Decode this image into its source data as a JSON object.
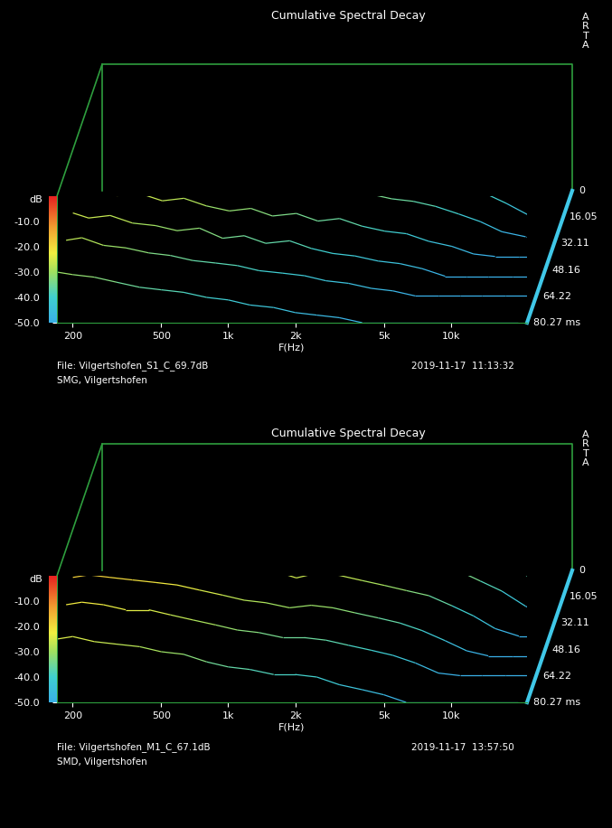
{
  "chart_data": [
    {
      "type": "waterfall",
      "title": "Cumulative Spectral Decay",
      "xlabel": "F(Hz)",
      "ylabel": "dB",
      "log": "x",
      "x": [
        170,
        200,
        250,
        315,
        400,
        500,
        630,
        800,
        1000,
        1250,
        1600,
        2000,
        2500,
        3150,
        4000,
        5000,
        6300,
        8000,
        10000,
        12500,
        16000,
        20000
      ],
      "xlim": [
        170,
        22000
      ],
      "xticks": [
        200,
        500,
        {
          "value": 1000,
          "label": "1k"
        },
        {
          "value": 2000,
          "label": "2k"
        },
        {
          "value": 5000,
          "label": "5k"
        },
        {
          "value": 10000,
          "label": "10k"
        }
      ],
      "ylim": [
        -50,
        0
      ],
      "yticks": [
        {
          "value": -10,
          "label": "-10.0"
        },
        {
          "value": -20,
          "label": "-20.0"
        },
        {
          "value": -30,
          "label": "-30.0"
        },
        {
          "value": -40,
          "label": "-40.0"
        },
        {
          "value": -50,
          "label": "-50.0"
        }
      ],
      "zlim": [
        0,
        80.27
      ],
      "zticks": [
        0,
        16.05,
        32.11,
        48.16,
        64.22,
        {
          "value": 80.27,
          "label": "80.27 ms"
        }
      ],
      "series": [
        {
          "time": 0,
          "values": [
            -3,
            -2,
            -1,
            -1,
            -2,
            -2,
            -3,
            -3,
            -3,
            -3,
            -2,
            -1,
            0,
            -1,
            -2,
            -2,
            -3,
            -3,
            -4,
            -5,
            -7,
            -10
          ]
        },
        {
          "time": 4,
          "values": [
            -8,
            -9,
            -7,
            -9,
            -8,
            -10,
            -9,
            -11,
            -10,
            -9,
            -11,
            -8,
            -6,
            -9,
            -10,
            -12,
            -11,
            -13,
            -14,
            -16,
            -19,
            -24
          ]
        },
        {
          "time": 8,
          "values": [
            -12,
            -11,
            -13,
            -12,
            -14,
            -13,
            -15,
            -14,
            -16,
            -15,
            -17,
            -14,
            -13,
            -16,
            -18,
            -17,
            -20,
            -21,
            -23,
            -26,
            -30,
            -36
          ]
        },
        {
          "time": 12,
          "values": [
            -15,
            -14,
            -16,
            -17,
            -16,
            -18,
            -17,
            -20,
            -19,
            -21,
            -20,
            -19,
            -18,
            -22,
            -21,
            -24,
            -25,
            -27,
            -29,
            -33,
            -38,
            -44
          ]
        },
        {
          "time": 20,
          "values": [
            -18,
            -17,
            -20,
            -19,
            -22,
            -21,
            -23,
            -22,
            -25,
            -24,
            -27,
            -25,
            -24,
            -28,
            -30,
            -29,
            -32,
            -35,
            -38,
            -42,
            -47,
            -50
          ]
        },
        {
          "time": 28,
          "values": [
            -20,
            -21,
            -22,
            -24,
            -23,
            -26,
            -25,
            -28,
            -27,
            -30,
            -29,
            -31,
            -30,
            -33,
            -35,
            -36,
            -38,
            -41,
            -44,
            -48,
            -50,
            -50
          ]
        },
        {
          "time": 40,
          "values": [
            -23,
            -22,
            -26,
            -25,
            -28,
            -27,
            -30,
            -32,
            -31,
            -34,
            -33,
            -36,
            -35,
            -38,
            -40,
            -41,
            -44,
            -46,
            -49,
            -50,
            -50,
            -50
          ]
        },
        {
          "time": 52,
          "values": [
            -25,
            -27,
            -26,
            -29,
            -30,
            -32,
            -31,
            -35,
            -34,
            -37,
            -36,
            -39,
            -41,
            -42,
            -44,
            -45,
            -47,
            -50,
            -50,
            -50,
            -50,
            -50
          ]
        },
        {
          "time": 64,
          "values": [
            -28,
            -27,
            -30,
            -31,
            -33,
            -34,
            -36,
            -37,
            -38,
            -40,
            -41,
            -42,
            -44,
            -45,
            -47,
            -48,
            -50,
            -50,
            -50,
            -50,
            -50,
            -50
          ]
        },
        {
          "time": 80.27,
          "values": [
            -30,
            -31,
            -32,
            -34,
            -36,
            -37,
            -38,
            -40,
            -41,
            -43,
            -44,
            -46,
            -47,
            -48,
            -50,
            -50,
            -50,
            -50,
            -50,
            -50,
            -50,
            -50
          ]
        }
      ],
      "annotations": {
        "file": "File: Vilgertshofen_S1_C_69.7dB",
        "timestamp": "2019-11-17  11:13:32",
        "location": "SMG, Vilgertshofen",
        "logo": "ARTA"
      }
    },
    {
      "type": "waterfall",
      "title": "Cumulative Spectral Decay",
      "xlabel": "F(Hz)",
      "ylabel": "dB",
      "log": "x",
      "x": [
        170,
        200,
        250,
        315,
        400,
        500,
        630,
        800,
        1000,
        1250,
        1600,
        2000,
        2500,
        3150,
        4000,
        5000,
        6300,
        8000,
        10000,
        12500,
        16000,
        20000
      ],
      "xlim": [
        170,
        22000
      ],
      "xticks": [
        200,
        500,
        {
          "value": 1000,
          "label": "1k"
        },
        {
          "value": 2000,
          "label": "2k"
        },
        {
          "value": 5000,
          "label": "5k"
        },
        {
          "value": 10000,
          "label": "10k"
        }
      ],
      "ylim": [
        -50,
        0
      ],
      "yticks": [
        {
          "value": -10,
          "label": "-10.0"
        },
        {
          "value": -20,
          "label": "-20.0"
        },
        {
          "value": -30,
          "label": "-30.0"
        },
        {
          "value": -40,
          "label": "-40.0"
        },
        {
          "value": -50,
          "label": "-50.0"
        }
      ],
      "zlim": [
        0,
        80.27
      ],
      "zticks": [
        0,
        16.05,
        32.11,
        48.16,
        64.22,
        {
          "value": 80.27,
          "label": "80.27 ms"
        }
      ],
      "series": [
        {
          "time": 0,
          "values": [
            -5,
            -3,
            -2,
            -1,
            0,
            -1,
            -1,
            -2,
            -3,
            -2,
            -3,
            -1,
            0,
            -1,
            -2,
            -3,
            -3,
            -4,
            -4,
            -5,
            -6,
            -8
          ]
        },
        {
          "time": 4,
          "values": [
            -6,
            -4,
            -3,
            -4,
            -2,
            -3,
            -5,
            -6,
            -8,
            -7,
            -8,
            -6,
            -5,
            -8,
            -9,
            -10,
            -11,
            -12,
            -13,
            -15,
            -18,
            -22
          ]
        },
        {
          "time": 8,
          "values": [
            -7,
            -6,
            -5,
            -6,
            -5,
            -6,
            -8,
            -9,
            -11,
            -10,
            -12,
            -10,
            -9,
            -12,
            -13,
            -14,
            -15,
            -17,
            -19,
            -22,
            -26,
            -32
          ]
        },
        {
          "time": 12,
          "values": [
            -9,
            -7,
            -7,
            -8,
            -7,
            -9,
            -10,
            -12,
            -14,
            -13,
            -15,
            -13,
            -13,
            -15,
            -16,
            -18,
            -19,
            -21,
            -24,
            -27,
            -32,
            -39
          ]
        },
        {
          "time": 20,
          "values": [
            -11,
            -9,
            -10,
            -10,
            -11,
            -12,
            -13,
            -15,
            -17,
            -16,
            -19,
            -17,
            -17,
            -19,
            -21,
            -22,
            -24,
            -27,
            -30,
            -34,
            -40,
            -47
          ]
        },
        {
          "time": 28,
          "values": [
            -13,
            -12,
            -12,
            -13,
            -14,
            -15,
            -16,
            -18,
            -20,
            -20,
            -22,
            -21,
            -21,
            -23,
            -25,
            -27,
            -29,
            -32,
            -36,
            -40,
            -46,
            -50
          ]
        },
        {
          "time": 40,
          "values": [
            -16,
            -15,
            -15,
            -17,
            -17,
            -19,
            -20,
            -22,
            -24,
            -24,
            -27,
            -25,
            -26,
            -28,
            -30,
            -32,
            -34,
            -38,
            -42,
            -47,
            -50,
            -50
          ]
        },
        {
          "time": 52,
          "values": [
            -19,
            -18,
            -19,
            -20,
            -21,
            -22,
            -24,
            -26,
            -28,
            -29,
            -31,
            -30,
            -31,
            -33,
            -35,
            -37,
            -40,
            -44,
            -48,
            -50,
            -50,
            -50
          ]
        },
        {
          "time": 64,
          "values": [
            -22,
            -21,
            -22,
            -24,
            -24,
            -26,
            -28,
            -30,
            -32,
            -33,
            -35,
            -35,
            -36,
            -38,
            -40,
            -42,
            -45,
            -49,
            -50,
            -50,
            -50,
            -50
          ]
        },
        {
          "time": 80.27,
          "values": [
            -25,
            -24,
            -26,
            -27,
            -28,
            -30,
            -31,
            -34,
            -36,
            -37,
            -39,
            -39,
            -40,
            -43,
            -45,
            -47,
            -50,
            -50,
            -50,
            -50,
            -50,
            -50
          ]
        }
      ],
      "annotations": {
        "file": "File: Vilgertshofen_M1_C_67.1dB",
        "timestamp": "2019-11-17  13:57:50",
        "location": "SMD, Vilgertshofen",
        "logo": "ARTA"
      }
    }
  ]
}
